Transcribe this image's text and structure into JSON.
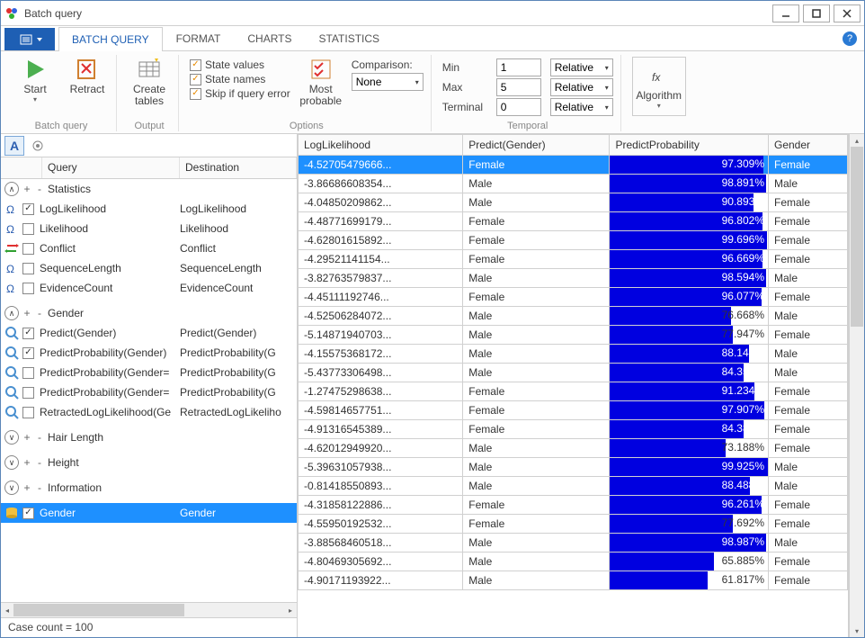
{
  "window": {
    "title": "Batch query"
  },
  "tabs": {
    "t0": "BATCH QUERY",
    "t1": "FORMAT",
    "t2": "CHARTS",
    "t3": "STATISTICS"
  },
  "ribbon": {
    "start": "Start",
    "retract": "Retract",
    "group_bq": "Batch query",
    "create_tables": "Create\ntables",
    "group_output": "Output",
    "opt_state_values": "State values",
    "opt_state_names": "State names",
    "opt_skip": "Skip if query error",
    "most_probable": "Most\nprobable",
    "comparison": "Comparison:",
    "comparison_val": "None",
    "group_options": "Options",
    "min": "Min",
    "min_val": "1",
    "max": "Max",
    "max_val": "5",
    "terminal": "Terminal",
    "terminal_val": "0",
    "rel": "Relative",
    "group_temporal": "Temporal",
    "algorithm": "Algorithm"
  },
  "tree": {
    "head_query": "Query",
    "head_dest": "Destination",
    "groups": [
      {
        "label": "Statistics",
        "expanded": true,
        "items": [
          {
            "icon": "omega",
            "checked": true,
            "name": "LogLikelihood",
            "dest": "LogLikelihood"
          },
          {
            "icon": "omega",
            "checked": false,
            "name": "Likelihood",
            "dest": "Likelihood"
          },
          {
            "icon": "conflict",
            "checked": false,
            "name": "Conflict",
            "dest": "Conflict"
          },
          {
            "icon": "omega",
            "checked": false,
            "name": "SequenceLength",
            "dest": "SequenceLength"
          },
          {
            "icon": "omega",
            "checked": false,
            "name": "EvidenceCount",
            "dest": "EvidenceCount"
          }
        ]
      },
      {
        "label": "Gender",
        "expanded": true,
        "items": [
          {
            "icon": "query",
            "checked": true,
            "name": "Predict(Gender)",
            "dest": "Predict(Gender)"
          },
          {
            "icon": "query",
            "checked": true,
            "name": "PredictProbability(Gender)",
            "dest": "PredictProbability(G"
          },
          {
            "icon": "query",
            "checked": false,
            "name": "PredictProbability(Gender=",
            "dest": "PredictProbability(G"
          },
          {
            "icon": "query",
            "checked": false,
            "name": "PredictProbability(Gender=",
            "dest": "PredictProbability(G"
          },
          {
            "icon": "query",
            "checked": false,
            "name": "RetractedLogLikelihood(Ge",
            "dest": "RetractedLogLikeliho"
          }
        ]
      },
      {
        "label": "Hair Length",
        "expanded": false,
        "items": []
      },
      {
        "label": "Height",
        "expanded": false,
        "items": []
      },
      {
        "label": "Information",
        "expanded": false,
        "items": []
      }
    ],
    "selected": {
      "icon": "db",
      "name": "Gender",
      "dest": "Gender"
    }
  },
  "grid": {
    "cols": [
      "LogLikelihood",
      "Predict(Gender)",
      "PredictProbability",
      "Gender"
    ],
    "rows": [
      {
        "ll": "-4.52705479666...",
        "pred": "Female",
        "prob": 97.309,
        "gender": "Female",
        "sel": true
      },
      {
        "ll": "-3.86686608354...",
        "pred": "Male",
        "prob": 98.891,
        "gender": "Male"
      },
      {
        "ll": "-4.04850209862...",
        "pred": "Male",
        "prob": 90.893,
        "gender": "Female"
      },
      {
        "ll": "-4.48771699179...",
        "pred": "Female",
        "prob": 96.802,
        "gender": "Female"
      },
      {
        "ll": "-4.62801615892...",
        "pred": "Female",
        "prob": 99.696,
        "gender": "Female"
      },
      {
        "ll": "-4.29521141154...",
        "pred": "Female",
        "prob": 96.669,
        "gender": "Female"
      },
      {
        "ll": "-3.82763579837...",
        "pred": "Male",
        "prob": 98.594,
        "gender": "Male"
      },
      {
        "ll": "-4.45111192746...",
        "pred": "Female",
        "prob": 96.077,
        "gender": "Female"
      },
      {
        "ll": "-4.52506284072...",
        "pred": "Male",
        "prob": 76.668,
        "gender": "Male"
      },
      {
        "ll": "-5.14871940703...",
        "pred": "Male",
        "prob": 77.947,
        "gender": "Female"
      },
      {
        "ll": "-4.15575368172...",
        "pred": "Male",
        "prob": 88.142,
        "gender": "Male"
      },
      {
        "ll": "-5.43773306498...",
        "pred": "Male",
        "prob": 84.356,
        "gender": "Male"
      },
      {
        "ll": "-1.27475298638...",
        "pred": "Female",
        "prob": 91.234,
        "gender": "Female"
      },
      {
        "ll": "-4.59814657751...",
        "pred": "Female",
        "prob": 97.907,
        "gender": "Female"
      },
      {
        "ll": "-4.91316545389...",
        "pred": "Female",
        "prob": 84.38,
        "gender": "Female"
      },
      {
        "ll": "-4.62012949920...",
        "pred": "Male",
        "prob": 73.188,
        "gender": "Female"
      },
      {
        "ll": "-5.39631057938...",
        "pred": "Male",
        "prob": 99.925,
        "gender": "Male"
      },
      {
        "ll": "-0.81418550893...",
        "pred": "Male",
        "prob": 88.488,
        "gender": "Male"
      },
      {
        "ll": "-4.31858122886...",
        "pred": "Female",
        "prob": 96.261,
        "gender": "Female"
      },
      {
        "ll": "-4.55950192532...",
        "pred": "Female",
        "prob": 77.692,
        "gender": "Female"
      },
      {
        "ll": "-3.88568460518...",
        "pred": "Male",
        "prob": 98.987,
        "gender": "Male"
      },
      {
        "ll": "-4.80469305692...",
        "pred": "Male",
        "prob": 65.885,
        "gender": "Female"
      },
      {
        "ll": "-4.90171193922...",
        "pred": "Male",
        "prob": 61.817,
        "gender": "Female"
      }
    ]
  },
  "status": {
    "text": "Case count = 100"
  },
  "colors": {
    "accent": "#1e90ff",
    "bar": "#0000e0",
    "check": "#e68a00"
  }
}
